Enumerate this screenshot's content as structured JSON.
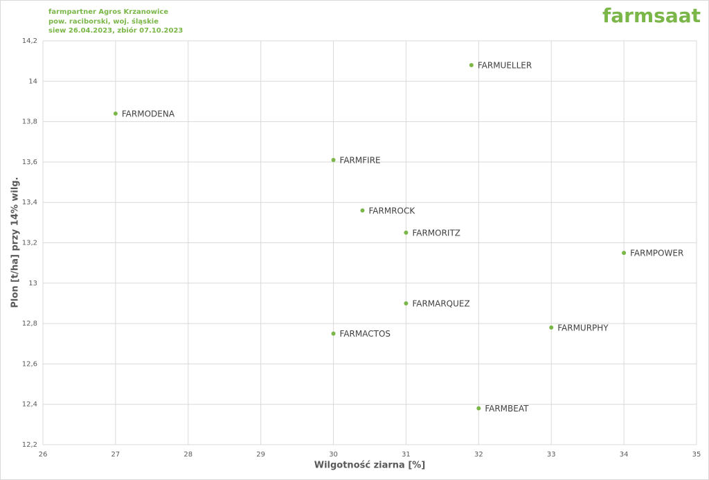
{
  "header": {
    "lines": [
      "farmpartner Agros Krzanowice",
      "pow. raciborski, woj. śląskie",
      "siew 26.04.2023, zbiór 07.10.2023"
    ],
    "logo": "farmsaat"
  },
  "chart_data": {
    "type": "scatter",
    "x_label": "Wilgotność ziarna [%]",
    "y_label": "Plon [t/ha] przy 14% wilg.",
    "labels": [
      "FARMUELLER",
      "FARMODENA",
      "FARMFIRE",
      "FARMROCK",
      "FARMORITZ",
      "FARMPOWER",
      "FARMARQUEZ",
      "FARMACTOS",
      "FARMURPHY",
      "FARMBEAT"
    ],
    "x": [
      31.9,
      27,
      30,
      30.4,
      31,
      34,
      31,
      30,
      33,
      32
    ],
    "values": [
      14.08,
      13.84,
      13.61,
      13.36,
      13.25,
      13.15,
      12.9,
      12.75,
      12.78,
      12.38
    ],
    "color": "#7ab648",
    "xlim": [
      26,
      35
    ],
    "xticks": [
      26,
      27,
      28,
      29,
      30,
      31,
      32,
      33,
      34,
      35
    ],
    "ylim": [
      12.2,
      14.2
    ],
    "yticks": [
      {
        "value": 12.2,
        "label": "12,2"
      },
      {
        "value": 12.4,
        "label": "12,4"
      },
      {
        "value": 12.6,
        "label": "12,6"
      },
      {
        "value": 12.8,
        "label": "12,8"
      },
      13,
      {
        "value": 13.2,
        "label": "13,2"
      },
      {
        "value": 13.4,
        "label": "13,4"
      },
      {
        "value": 13.6,
        "label": "13,6"
      },
      {
        "value": 13.8,
        "label": "13,8"
      },
      14,
      {
        "value": 14.2,
        "label": "14,2"
      }
    ],
    "grid": true
  }
}
